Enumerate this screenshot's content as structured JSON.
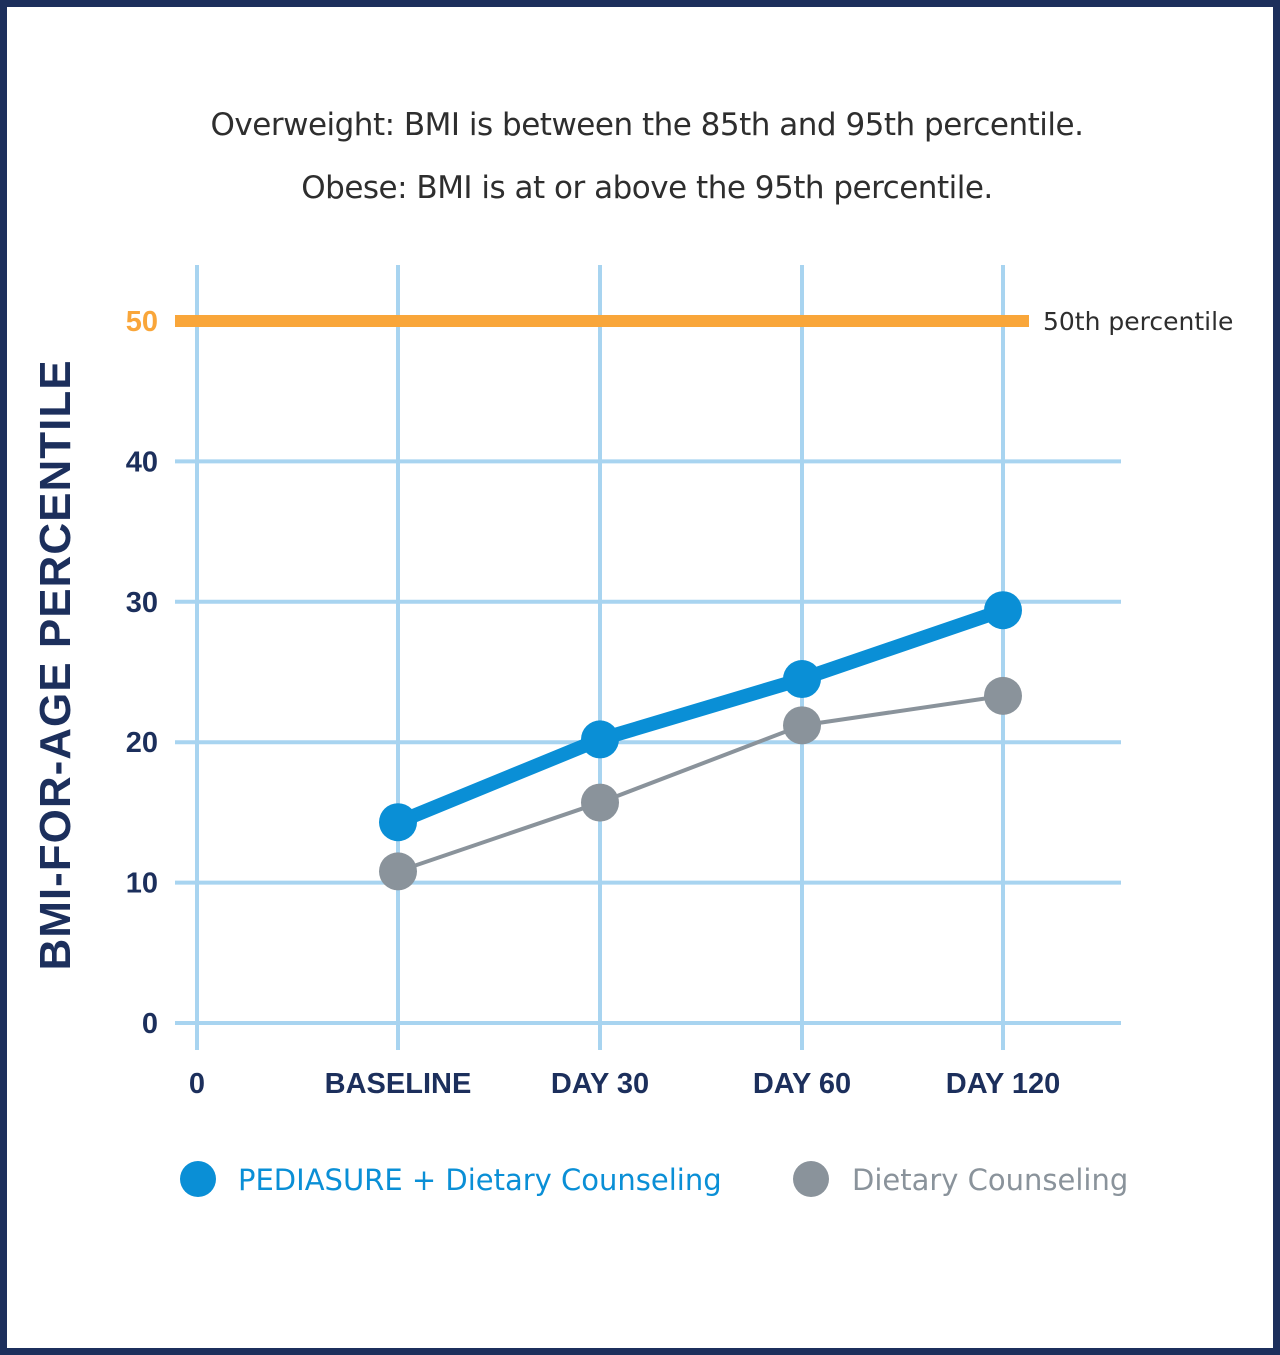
{
  "notes": {
    "line1": "Overweight: BMI is between the 85th and 95th percentile.",
    "line2": "Obese: BMI is at or above the 95th percentile."
  },
  "chart_data": {
    "type": "line",
    "title": "",
    "xlabel": "",
    "ylabel": "BMI-FOR-AGE PERCENTILE",
    "x_tick_labels": [
      "0",
      "BASELINE",
      "DAY 30",
      "DAY 60",
      "DAY 120"
    ],
    "categories": [
      "BASELINE",
      "DAY 30",
      "DAY 60",
      "DAY 120"
    ],
    "y_ticks": [
      0,
      10,
      20,
      30,
      40,
      50
    ],
    "ylim": [
      0,
      50
    ],
    "grid": true,
    "reference_line": {
      "value": 50,
      "label": "50th percentile",
      "color": "#f9a63a"
    },
    "series": [
      {
        "name": "PEDIASURE + Dietary Counseling",
        "values": [
          14.3,
          20.2,
          24.5,
          29.4
        ],
        "color": "#0a8fd6"
      },
      {
        "name": "Dietary Counseling",
        "values": [
          10.8,
          15.7,
          21.2,
          23.3
        ],
        "color": "#8a939b"
      }
    ],
    "legend_position": "bottom"
  },
  "colors": {
    "frame": "#1c2f5c",
    "grid": "#a8d4f0",
    "axis_text": "#1c2f5c",
    "highlight_tick": "#f9a63a"
  }
}
